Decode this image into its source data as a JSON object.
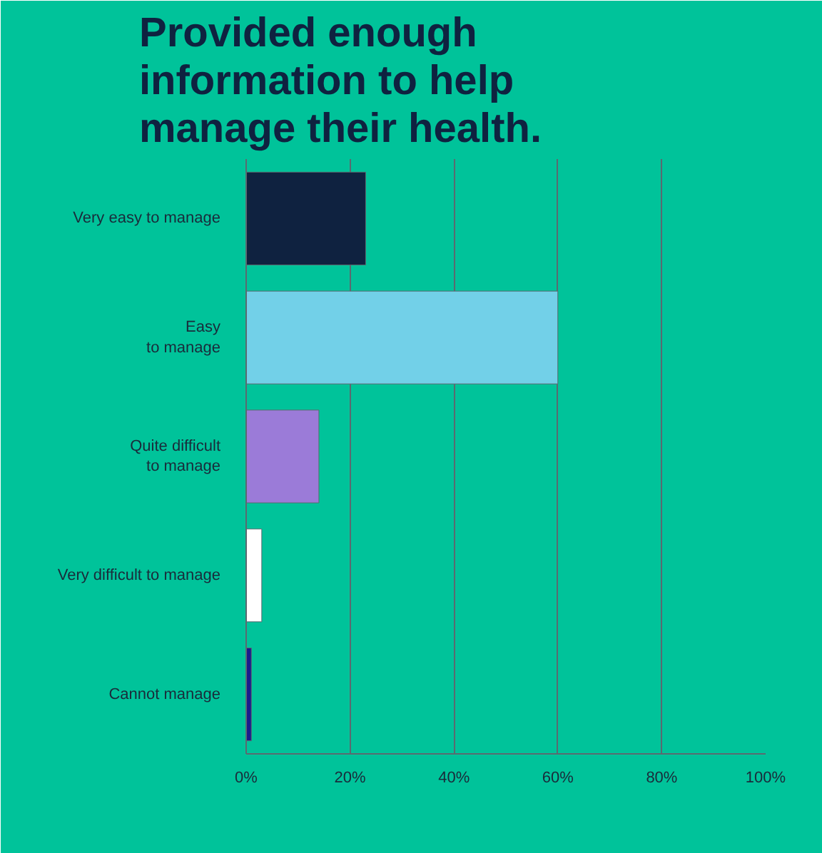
{
  "chart_data": {
    "type": "bar",
    "orientation": "horizontal",
    "title": "Provided enough\ninformation to help\nmanage their health.",
    "categories": [
      "Very easy to manage",
      "Easy\nto manage",
      "Quite difficult\nto manage",
      "Very difficult to manage",
      "Cannot manage"
    ],
    "values": [
      23,
      60,
      14,
      3,
      1
    ],
    "colors": [
      "#0f2240",
      "#72d0e8",
      "#9b7bd8",
      "#ffffff",
      "#1a1a8c"
    ],
    "xlim": [
      0,
      100
    ],
    "xticks": [
      {
        "value": 0,
        "label": "0%"
      },
      {
        "value": 20,
        "label": "20%"
      },
      {
        "value": 40,
        "label": "40%"
      },
      {
        "value": 60,
        "label": "60%"
      },
      {
        "value": 80,
        "label": "80%"
      },
      {
        "value": 100,
        "label": "100%"
      }
    ],
    "grid": "x"
  }
}
